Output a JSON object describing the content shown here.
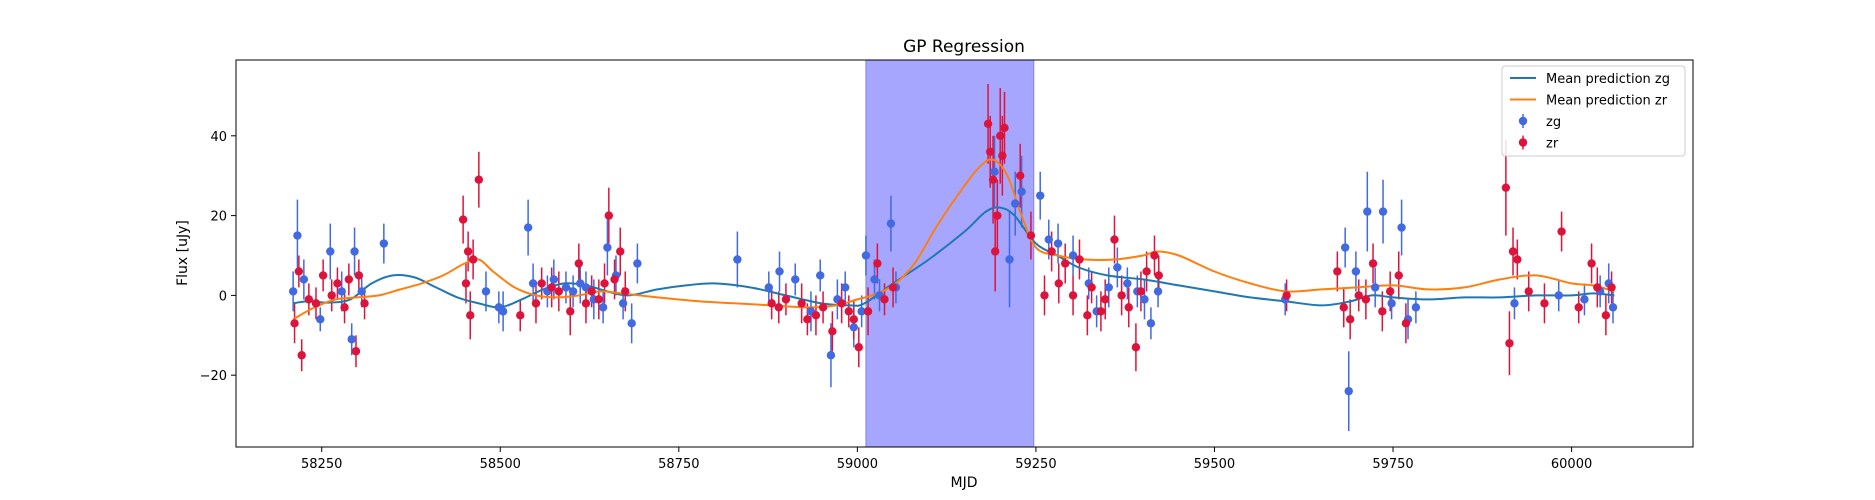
{
  "chart_data": {
    "type": "scatter",
    "title": "GP Regression",
    "xlabel": "MJD",
    "ylabel": "Flux [uJy]",
    "xlim": [
      58130,
      60170
    ],
    "ylim": [
      -38,
      59
    ],
    "xticks": [
      58250,
      58500,
      58750,
      59000,
      59250,
      59500,
      59750,
      60000
    ],
    "yticks": [
      -20,
      0,
      20,
      40
    ],
    "grid": false,
    "legend_position": "top-right",
    "shaded_region": {
      "x0": 59012,
      "x1": 59247,
      "color": "#a6a6ff"
    },
    "series": [
      {
        "name": "Mean prediction zg",
        "kind": "line",
        "color": "#1f77b4",
        "x": [
          58210,
          58230,
          58260,
          58290,
          58320,
          58350,
          58380,
          58410,
          58440,
          58470,
          58500,
          58530,
          58560,
          58590,
          58620,
          58650,
          58680,
          58720,
          58760,
          58800,
          58850,
          58900,
          58950,
          58990,
          59010,
          59050,
          59100,
          59150,
          59180,
          59200,
          59220,
          59250,
          59280,
          59310,
          59350,
          59400,
          59450,
          59500,
          59550,
          59600,
          59650,
          59690,
          59720,
          59750,
          59800,
          59850,
          59900,
          59950,
          60000,
          60030,
          60060
        ],
        "y": [
          -2,
          -1.5,
          -1.8,
          -1,
          3,
          5,
          4.5,
          2,
          -0.5,
          -2,
          -3,
          -1,
          1.5,
          3,
          2.5,
          1,
          0,
          1.5,
          2.5,
          3,
          2,
          0,
          -2,
          -2.5,
          -2,
          3,
          9,
          16,
          21,
          22,
          20,
          13,
          10,
          7,
          5,
          4,
          2.5,
          1,
          -0.5,
          -1.5,
          -2.5,
          -1.5,
          0,
          -0.5,
          -1,
          -0.5,
          -0.5,
          0,
          0,
          0.5,
          0
        ]
      },
      {
        "name": "Mean prediction zr",
        "kind": "line",
        "color": "#ff7f0e",
        "x": [
          58210,
          58240,
          58270,
          58300,
          58330,
          58360,
          58390,
          58420,
          58450,
          58470,
          58490,
          58520,
          58550,
          58580,
          58610,
          58640,
          58670,
          58720,
          58780,
          58830,
          58880,
          58930,
          58970,
          59000,
          59020,
          59050,
          59080,
          59110,
          59140,
          59170,
          59190,
          59210,
          59230,
          59250,
          59280,
          59320,
          59360,
          59400,
          59420,
          59450,
          59500,
          59550,
          59600,
          59650,
          59700,
          59750,
          59800,
          59850,
          59900,
          59950,
          60000,
          60030,
          60060
        ],
        "y": [
          -6,
          -3,
          -1,
          -0.5,
          0,
          1.5,
          3,
          5,
          8,
          9,
          6,
          2,
          0,
          -0.5,
          0,
          1,
          0.5,
          -0.5,
          -1.5,
          -2,
          -2.5,
          -3,
          -2.5,
          -1,
          0,
          2.5,
          8,
          17,
          25,
          32,
          34,
          30,
          20,
          12,
          10,
          9,
          9,
          10,
          11,
          10,
          6,
          3,
          1,
          1.5,
          2,
          2.5,
          1.5,
          2,
          4,
          5,
          3,
          2.5,
          1
        ]
      },
      {
        "name": "zg",
        "kind": "errorbar",
        "color": "#4169e1",
        "x": [
          58210,
          58216,
          58225,
          58248,
          58262,
          58278,
          58292,
          58296,
          58306,
          58337,
          58480,
          58498,
          58504,
          58539,
          58546,
          58566,
          58575,
          58592,
          58602,
          58612,
          58620,
          58631,
          58644,
          58650,
          58662,
          58672,
          58684,
          58692,
          58832,
          58876,
          58891,
          58913,
          58935,
          58948,
          58963,
          58972,
          58983,
          58995,
          59006,
          59012,
          59024,
          59031,
          59047,
          59054,
          59192,
          59213,
          59221,
          59230,
          59256,
          59268,
          59281,
          59302,
          59324,
          59335,
          59352,
          59364,
          59378,
          59392,
          59402,
          59411,
          59421,
          59599,
          59683,
          59688,
          59698,
          59714,
          59725,
          59736,
          59748,
          59762,
          59771,
          59782,
          59920,
          59982,
          60018,
          60040,
          60052,
          60058
        ],
        "y": [
          1,
          15,
          4,
          -6,
          11,
          1,
          -11,
          11,
          1,
          13,
          1,
          -3,
          -4,
          17,
          3,
          1,
          4,
          2,
          1,
          3,
          2,
          -1,
          -3,
          12,
          5,
          -2,
          -7,
          8,
          9,
          2,
          6,
          4,
          -4,
          5,
          -15,
          -1,
          2,
          -8,
          -4,
          10,
          4,
          0,
          18,
          2,
          31,
          9,
          23,
          26,
          25,
          14,
          13,
          10,
          3,
          -4,
          2,
          7,
          3,
          1,
          -1,
          -7,
          1,
          -1,
          12,
          -24,
          6,
          21,
          2,
          21,
          -2,
          17,
          -6,
          -3,
          -2,
          0,
          -1,
          1,
          3,
          -3
        ],
        "err": [
          5,
          9,
          5,
          3,
          7,
          5,
          4,
          6,
          4,
          5,
          5,
          4,
          5,
          7,
          5,
          4,
          5,
          4,
          4,
          5,
          4,
          5,
          4,
          7,
          5,
          4,
          5,
          5,
          7,
          4,
          5,
          4,
          5,
          4,
          8,
          5,
          4,
          5,
          4,
          5,
          5,
          4,
          7,
          4,
          9,
          12,
          8,
          9,
          6,
          5,
          5,
          5,
          4,
          4,
          5,
          5,
          4,
          4,
          5,
          4,
          4,
          4,
          5,
          10,
          5,
          10,
          5,
          8,
          4,
          7,
          5,
          4,
          4,
          4,
          4,
          4,
          5,
          4
        ]
      },
      {
        "name": "zr",
        "kind": "errorbar",
        "color": "#dc143c",
        "x": [
          58212,
          58218,
          58222,
          58232,
          58242,
          58252,
          58264,
          58272,
          58282,
          58288,
          58298,
          58302,
          58310,
          58448,
          58452,
          58455,
          58458,
          58462,
          58470,
          58528,
          58550,
          58558,
          58572,
          58582,
          58598,
          58610,
          58620,
          58628,
          58638,
          58646,
          58652,
          58660,
          58668,
          58675,
          58880,
          58890,
          58900,
          58922,
          58930,
          58942,
          58952,
          58965,
          58978,
          58988,
          58995,
          59002,
          59015,
          59028,
          59038,
          59050,
          59183,
          59186,
          59190,
          59193,
          59196,
          59200,
          59203,
          59206,
          59228,
          59243,
          59262,
          59272,
          59282,
          59291,
          59302,
          59311,
          59322,
          59328,
          59341,
          59347,
          59360,
          59370,
          59380,
          59390,
          59397,
          59405,
          59416,
          59422,
          59601,
          59672,
          59681,
          59690,
          59702,
          59712,
          59722,
          59735,
          59746,
          59758,
          59768,
          59908,
          59913,
          59918,
          59924,
          59940,
          59962,
          59986,
          60010,
          60028,
          60036,
          60048,
          60056
        ],
        "y": [
          -7,
          6,
          -15,
          -1,
          -2,
          5,
          0,
          3,
          -3,
          4,
          -14,
          5,
          -2,
          19,
          3,
          11,
          -5,
          9,
          29,
          -5,
          -2,
          3,
          2,
          1,
          -4,
          8,
          -2,
          1,
          -1,
          3,
          20,
          4,
          11,
          1,
          -2,
          -3,
          -1,
          -2,
          -6,
          -5,
          -3,
          -9,
          -2,
          -4,
          -6,
          -13,
          -4,
          8,
          -1,
          2,
          43,
          36,
          29,
          11,
          20,
          40,
          35,
          42,
          30,
          15,
          0,
          11,
          3,
          8,
          0,
          9,
          -5,
          2,
          -4,
          -1,
          14,
          0,
          -3,
          -13,
          1,
          6,
          10,
          5,
          0,
          6,
          -3,
          -6,
          0,
          -1,
          8,
          -4,
          1,
          5,
          -7,
          27,
          -12,
          11,
          9,
          1,
          -2,
          16,
          -3,
          8,
          2,
          -5,
          2
        ],
        "err": [
          5,
          4,
          4,
          4,
          4,
          4,
          4,
          4,
          4,
          4,
          4,
          4,
          4,
          6,
          5,
          5,
          6,
          5,
          7,
          4,
          5,
          4,
          5,
          5,
          6,
          5,
          5,
          4,
          5,
          5,
          7,
          5,
          6,
          5,
          4,
          4,
          4,
          5,
          4,
          5,
          4,
          5,
          5,
          4,
          5,
          5,
          6,
          5,
          4,
          5,
          10,
          9,
          11,
          10,
          9,
          12,
          10,
          9,
          8,
          6,
          5,
          5,
          5,
          5,
          5,
          5,
          5,
          4,
          5,
          5,
          6,
          5,
          5,
          6,
          5,
          5,
          5,
          5,
          4,
          5,
          5,
          5,
          4,
          5,
          5,
          5,
          5,
          6,
          5,
          12,
          8,
          6,
          5,
          5,
          5,
          5,
          4,
          5,
          5,
          5,
          4
        ]
      }
    ]
  }
}
